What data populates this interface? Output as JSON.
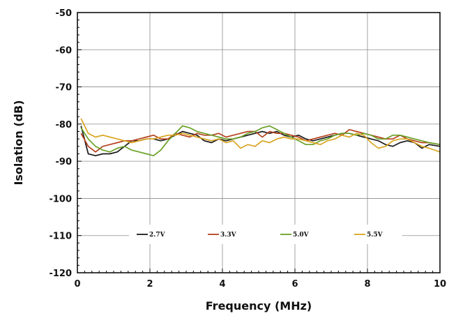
{
  "chart_data": {
    "type": "line",
    "title": "",
    "xlabel": "Frequency (MHz)",
    "ylabel": "Isolation (dB)",
    "xlim": [
      0,
      10
    ],
    "ylim": [
      -120,
      -50
    ],
    "x_ticks": [
      "0",
      "2",
      "4",
      "6",
      "8",
      "10"
    ],
    "y_ticks": [
      "-50",
      "-60",
      "-70",
      "-80",
      "-90",
      "-100",
      "-110",
      "-120"
    ],
    "grid": true,
    "legend_position": "lower-center",
    "x": [
      0.1,
      0.3,
      0.5,
      0.7,
      0.9,
      1.1,
      1.3,
      1.5,
      1.7,
      1.9,
      2.1,
      2.3,
      2.5,
      2.7,
      2.9,
      3.1,
      3.3,
      3.5,
      3.7,
      3.9,
      4.1,
      4.3,
      4.5,
      4.7,
      4.9,
      5.1,
      5.3,
      5.5,
      5.7,
      5.9,
      6.1,
      6.3,
      6.5,
      6.7,
      6.9,
      7.1,
      7.3,
      7.5,
      7.7,
      7.9,
      8.1,
      8.3,
      8.5,
      8.7,
      8.9,
      9.1,
      9.3,
      9.5,
      9.7,
      10.0
    ],
    "series": [
      {
        "name": "2.7V",
        "color": "#1a1a1a",
        "values": [
          -80.5,
          -88.0,
          -88.5,
          -88.0,
          -88.0,
          -87.5,
          -86.0,
          -84.5,
          -84.5,
          -84.0,
          -84.0,
          -84.5,
          -84.0,
          -83.0,
          -82.0,
          -82.5,
          -83.0,
          -84.5,
          -85.0,
          -84.0,
          -84.5,
          -84.0,
          -83.5,
          -83.0,
          -82.5,
          -82.0,
          -82.5,
          -82.0,
          -83.0,
          -83.5,
          -83.0,
          -84.0,
          -84.5,
          -84.0,
          -83.5,
          -83.0,
          -82.5,
          -82.5,
          -83.0,
          -83.5,
          -84.0,
          -84.5,
          -85.5,
          -86.0,
          -85.0,
          -84.5,
          -85.0,
          -86.5,
          -85.5,
          -86.0
        ]
      },
      {
        "name": "3.3V",
        "color": "#b5421e",
        "values": [
          -82.5,
          -86.0,
          -87.5,
          -86.0,
          -85.5,
          -85.0,
          -84.5,
          -84.5,
          -84.0,
          -83.5,
          -83.0,
          -84.0,
          -84.0,
          -82.5,
          -83.0,
          -83.5,
          -82.5,
          -83.0,
          -83.0,
          -82.5,
          -83.5,
          -83.0,
          -82.5,
          -82.0,
          -82.0,
          -83.5,
          -82.0,
          -82.5,
          -82.5,
          -83.0,
          -83.5,
          -84.5,
          -84.0,
          -83.5,
          -83.0,
          -82.5,
          -83.0,
          -81.5,
          -82.0,
          -82.5,
          -83.0,
          -83.5,
          -84.0,
          -84.0,
          -83.0,
          -84.0,
          -84.5,
          -85.0,
          -85.0,
          -85.5
        ]
      },
      {
        "name": "5.0V",
        "color": "#6aa126",
        "values": [
          -81.0,
          -84.0,
          -86.0,
          -87.0,
          -87.5,
          -86.5,
          -86.0,
          -87.0,
          -87.5,
          -88.0,
          -88.5,
          -87.0,
          -84.5,
          -82.5,
          -80.5,
          -81.0,
          -82.0,
          -82.5,
          -83.0,
          -83.5,
          -84.0,
          -84.0,
          -83.5,
          -82.5,
          -82.0,
          -81.0,
          -80.5,
          -81.5,
          -82.5,
          -83.5,
          -84.5,
          -85.5,
          -85.5,
          -84.5,
          -84.0,
          -83.0,
          -82.5,
          -82.5,
          -83.0,
          -82.5,
          -83.0,
          -84.0,
          -84.0,
          -83.0,
          -83.0,
          -83.5,
          -84.0,
          -84.5,
          -85.0,
          -85.5
        ]
      },
      {
        "name": "5.5V",
        "color": "#d9a520",
        "values": [
          -78.5,
          -82.5,
          -83.5,
          -83.0,
          -83.5,
          -84.0,
          -84.5,
          -85.0,
          -84.5,
          -84.0,
          -84.0,
          -83.5,
          -83.0,
          -83.0,
          -82.5,
          -83.0,
          -83.5,
          -84.0,
          -84.5,
          -84.0,
          -85.0,
          -84.5,
          -86.5,
          -85.5,
          -86.0,
          -84.5,
          -85.0,
          -84.0,
          -83.5,
          -84.0,
          -84.0,
          -84.5,
          -85.0,
          -85.5,
          -84.5,
          -84.0,
          -83.0,
          -83.5,
          -82.5,
          -83.0,
          -85.0,
          -86.5,
          -86.0,
          -84.5,
          -84.0,
          -84.0,
          -85.0,
          -86.0,
          -86.5,
          -87.5
        ]
      }
    ]
  }
}
